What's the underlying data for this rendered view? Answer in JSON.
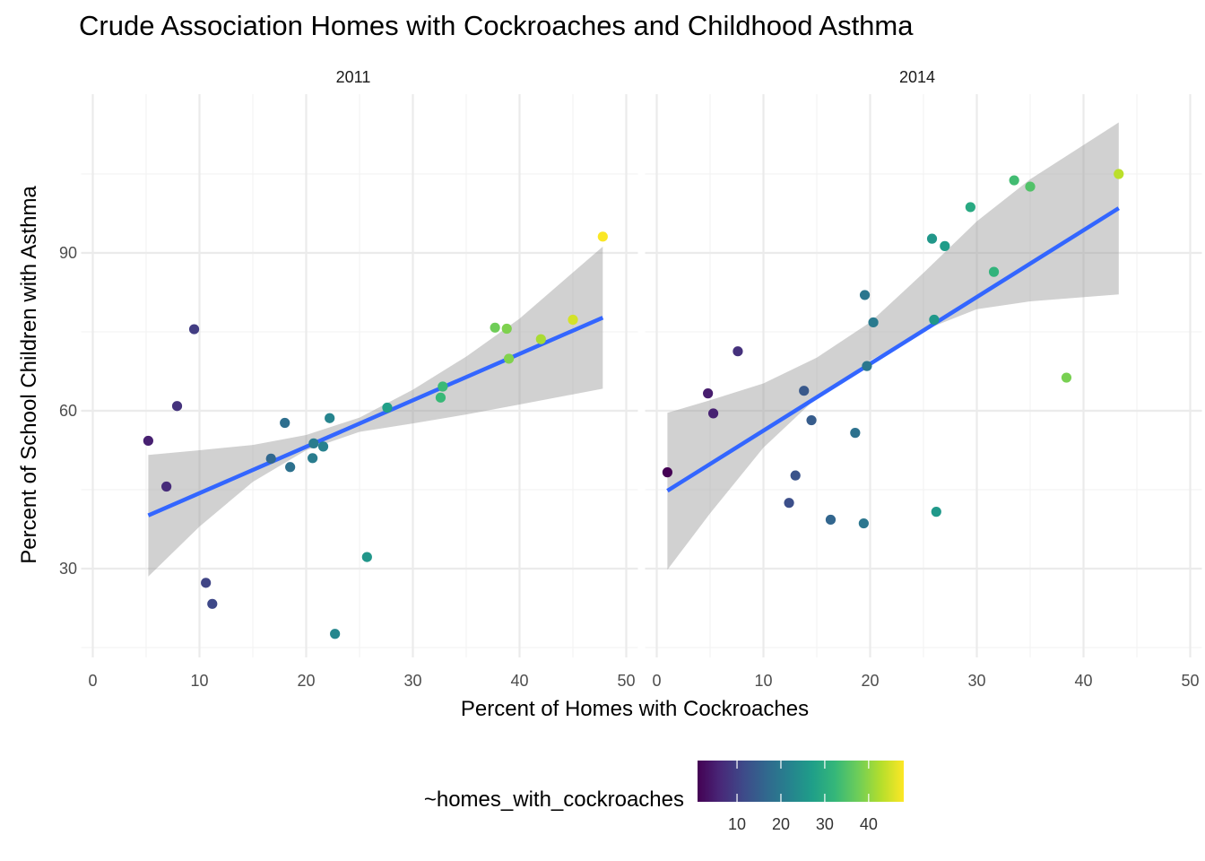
{
  "chart_data": {
    "type": "scatter",
    "title": "Crude Association Homes with Cockroaches and Childhood Asthma",
    "xlabel": "Percent of Homes with Cockroaches",
    "ylabel": "Percent of School Children with Asthma",
    "xlim": [
      0,
      50
    ],
    "ylim": [
      13,
      116
    ],
    "x_ticks": [
      0,
      10,
      20,
      30,
      40,
      50
    ],
    "y_ticks": [
      30,
      60,
      90
    ],
    "grid": true,
    "smooth": "linear regression fit with confidence band",
    "colors": {
      "fit_line": "#3366FF",
      "band": "#999999",
      "grid": "#EBEBEB",
      "viridis": [
        "#440154",
        "#482878",
        "#3E4A89",
        "#31688E",
        "#26828E",
        "#1F9E89",
        "#35B779",
        "#6DCD59",
        "#B4DE2C",
        "#FDE725"
      ]
    },
    "legend": {
      "title": "~homes_with_cockroaches",
      "position": "bottom",
      "range": [
        1,
        48
      ],
      "ticks": [
        10,
        20,
        30,
        40
      ]
    },
    "panels": [
      {
        "label": "2011",
        "points": [
          {
            "x": 5.2,
            "y": 54.3
          },
          {
            "x": 6.9,
            "y": 45.6
          },
          {
            "x": 7.9,
            "y": 60.9
          },
          {
            "x": 9.5,
            "y": 75.5
          },
          {
            "x": 10.6,
            "y": 27.3
          },
          {
            "x": 11.2,
            "y": 23.3
          },
          {
            "x": 16.7,
            "y": 50.9
          },
          {
            "x": 18.0,
            "y": 57.7
          },
          {
            "x": 18.5,
            "y": 49.3
          },
          {
            "x": 20.6,
            "y": 51.0
          },
          {
            "x": 20.7,
            "y": 53.8
          },
          {
            "x": 21.6,
            "y": 53.2
          },
          {
            "x": 22.2,
            "y": 58.6
          },
          {
            "x": 22.7,
            "y": 17.6
          },
          {
            "x": 25.7,
            "y": 32.2
          },
          {
            "x": 27.6,
            "y": 60.6
          },
          {
            "x": 32.6,
            "y": 62.5
          },
          {
            "x": 32.8,
            "y": 64.6
          },
          {
            "x": 37.7,
            "y": 75.8
          },
          {
            "x": 38.8,
            "y": 75.6
          },
          {
            "x": 39.0,
            "y": 69.9
          },
          {
            "x": 42.0,
            "y": 73.6
          },
          {
            "x": 45.0,
            "y": 77.3
          },
          {
            "x": 47.8,
            "y": 93.1
          }
        ],
        "fit": {
          "x": [
            5.2,
            47.8
          ],
          "y": [
            40.1,
            77.7
          ]
        },
        "band": {
          "x": [
            5.2,
            10,
            15,
            20,
            25,
            30,
            35,
            40,
            47.8
          ],
          "lower": [
            28.5,
            38.0,
            46.5,
            52.5,
            56.0,
            57.6,
            59.3,
            61.2,
            64.2
          ],
          "upper": [
            51.6,
            52.5,
            53.5,
            55.4,
            58.7,
            64.0,
            70.3,
            77.5,
            91.2
          ]
        }
      },
      {
        "label": "2014",
        "points": [
          {
            "x": 1.0,
            "y": 48.3
          },
          {
            "x": 4.8,
            "y": 63.3
          },
          {
            "x": 5.3,
            "y": 59.5
          },
          {
            "x": 7.6,
            "y": 71.3
          },
          {
            "x": 12.4,
            "y": 42.5
          },
          {
            "x": 13.0,
            "y": 47.7
          },
          {
            "x": 13.8,
            "y": 63.8
          },
          {
            "x": 14.5,
            "y": 58.2
          },
          {
            "x": 16.3,
            "y": 39.3
          },
          {
            "x": 18.6,
            "y": 55.8
          },
          {
            "x": 19.4,
            "y": 38.6
          },
          {
            "x": 19.5,
            "y": 82.0
          },
          {
            "x": 19.7,
            "y": 68.5
          },
          {
            "x": 20.3,
            "y": 76.8
          },
          {
            "x": 25.8,
            "y": 92.7
          },
          {
            "x": 26.0,
            "y": 77.3
          },
          {
            "x": 26.2,
            "y": 40.8
          },
          {
            "x": 27.0,
            "y": 91.3
          },
          {
            "x": 29.4,
            "y": 98.7
          },
          {
            "x": 31.6,
            "y": 86.4
          },
          {
            "x": 33.5,
            "y": 103.8
          },
          {
            "x": 35.0,
            "y": 102.6
          },
          {
            "x": 38.4,
            "y": 66.3
          },
          {
            "x": 43.3,
            "y": 105.0
          }
        ],
        "fit": {
          "x": [
            1.0,
            43.3
          ],
          "y": [
            44.8,
            98.5
          ]
        },
        "band": {
          "x": [
            1.0,
            5,
            10,
            15,
            20,
            25,
            30,
            35,
            43.3
          ],
          "lower": [
            29.8,
            40.5,
            53.0,
            62.5,
            69.5,
            75.3,
            79.3,
            80.8,
            82.1
          ],
          "upper": [
            59.6,
            62.0,
            65.2,
            70.1,
            76.8,
            86.2,
            96.0,
            104.0,
            114.8
          ]
        }
      }
    ]
  }
}
